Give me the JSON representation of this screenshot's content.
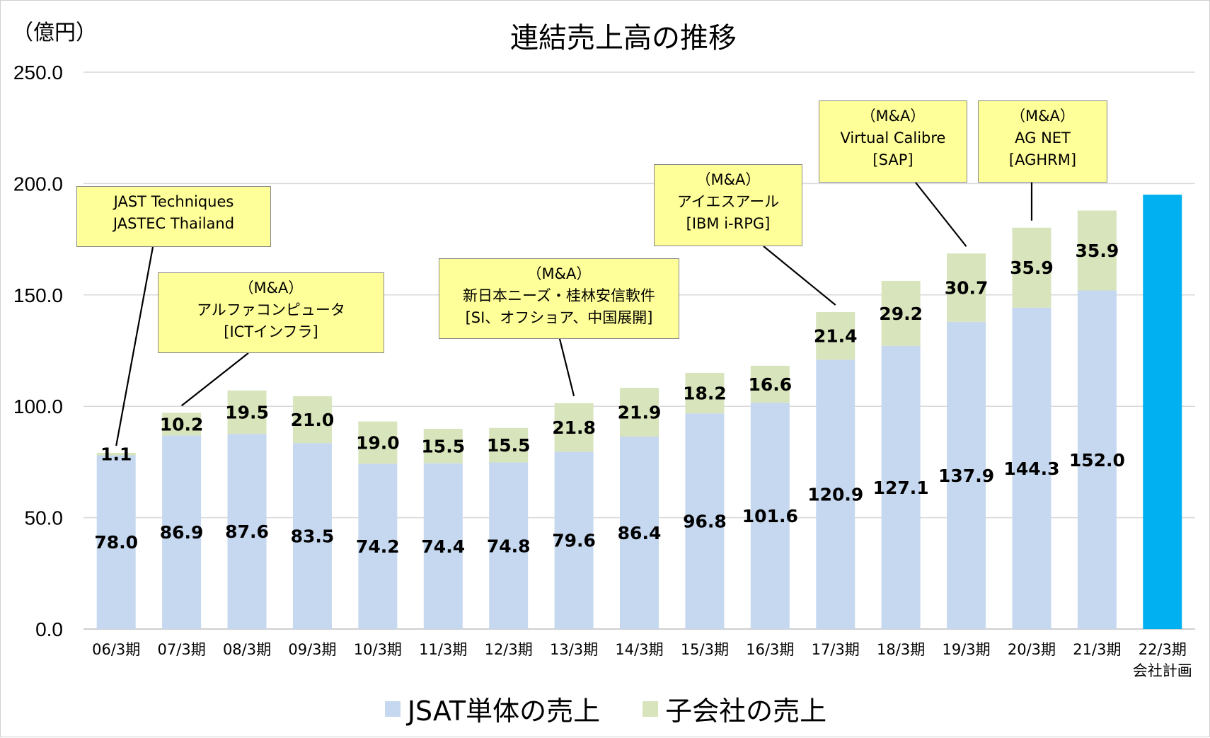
{
  "unit_label": "（億円）",
  "colors": {
    "jsat": "#c6d8ef",
    "sub": "#d8e4bc",
    "plan": "#00b0f0",
    "grid": "#d9d9d9",
    "callout_bg": "#ffff99"
  },
  "chart_data": {
    "type": "bar",
    "stacked": true,
    "title": "連結売上高の推移",
    "ylim": [
      0,
      250
    ],
    "yticks": [
      "0.0",
      "50.0",
      "100.0",
      "150.0",
      "200.0",
      "250.0"
    ],
    "grid": true,
    "legend_position": "bottom",
    "categories": [
      "06/3期",
      "07/3期",
      "08/3期",
      "09/3期",
      "10/3期",
      "11/3期",
      "12/3期",
      "13/3期",
      "14/3期",
      "15/3期",
      "16/3期",
      "17/3期",
      "18/3期",
      "19/3期",
      "20/3期",
      "21/3期",
      "22/3期\n会社計画"
    ],
    "series": [
      {
        "name": "JSAT単体の売上",
        "values": [
          78.0,
          86.9,
          87.6,
          83.5,
          74.2,
          74.4,
          74.8,
          79.6,
          86.4,
          96.8,
          101.6,
          120.9,
          127.1,
          137.9,
          144.3,
          152.0,
          null
        ]
      },
      {
        "name": "子会社の売上",
        "values": [
          1.1,
          10.2,
          19.5,
          21.0,
          19.0,
          15.5,
          15.5,
          21.8,
          21.9,
          18.2,
          16.6,
          21.4,
          29.2,
          30.7,
          35.9,
          35.9,
          null
        ]
      }
    ],
    "plan": {
      "category": "22/3期\n会社計画",
      "value": 195
    }
  },
  "annotations": [
    {
      "lines": [
        "JAST Techniques",
        "JASTEC Thailand"
      ],
      "category": "06/3期"
    },
    {
      "lines": [
        "（M&A）",
        "アルファコンピュータ",
        "[ICTインフラ]"
      ],
      "category": "07/3期"
    },
    {
      "lines": [
        "（M&A）",
        "新日本ニーズ・桂林安信軟件",
        "[SI、オフショア、中国展開]"
      ],
      "category": "13/3期"
    },
    {
      "lines": [
        "（M&A）",
        "アイエスアール",
        "[IBM i-RPG]"
      ],
      "category": "17/3期"
    },
    {
      "lines": [
        "（M&A）",
        "Virtual Calibre",
        "[SAP]"
      ],
      "category": "19/3期"
    },
    {
      "lines": [
        "（M&A）",
        "AG NET",
        "[AGHRM]"
      ],
      "category": "20/3期"
    }
  ]
}
